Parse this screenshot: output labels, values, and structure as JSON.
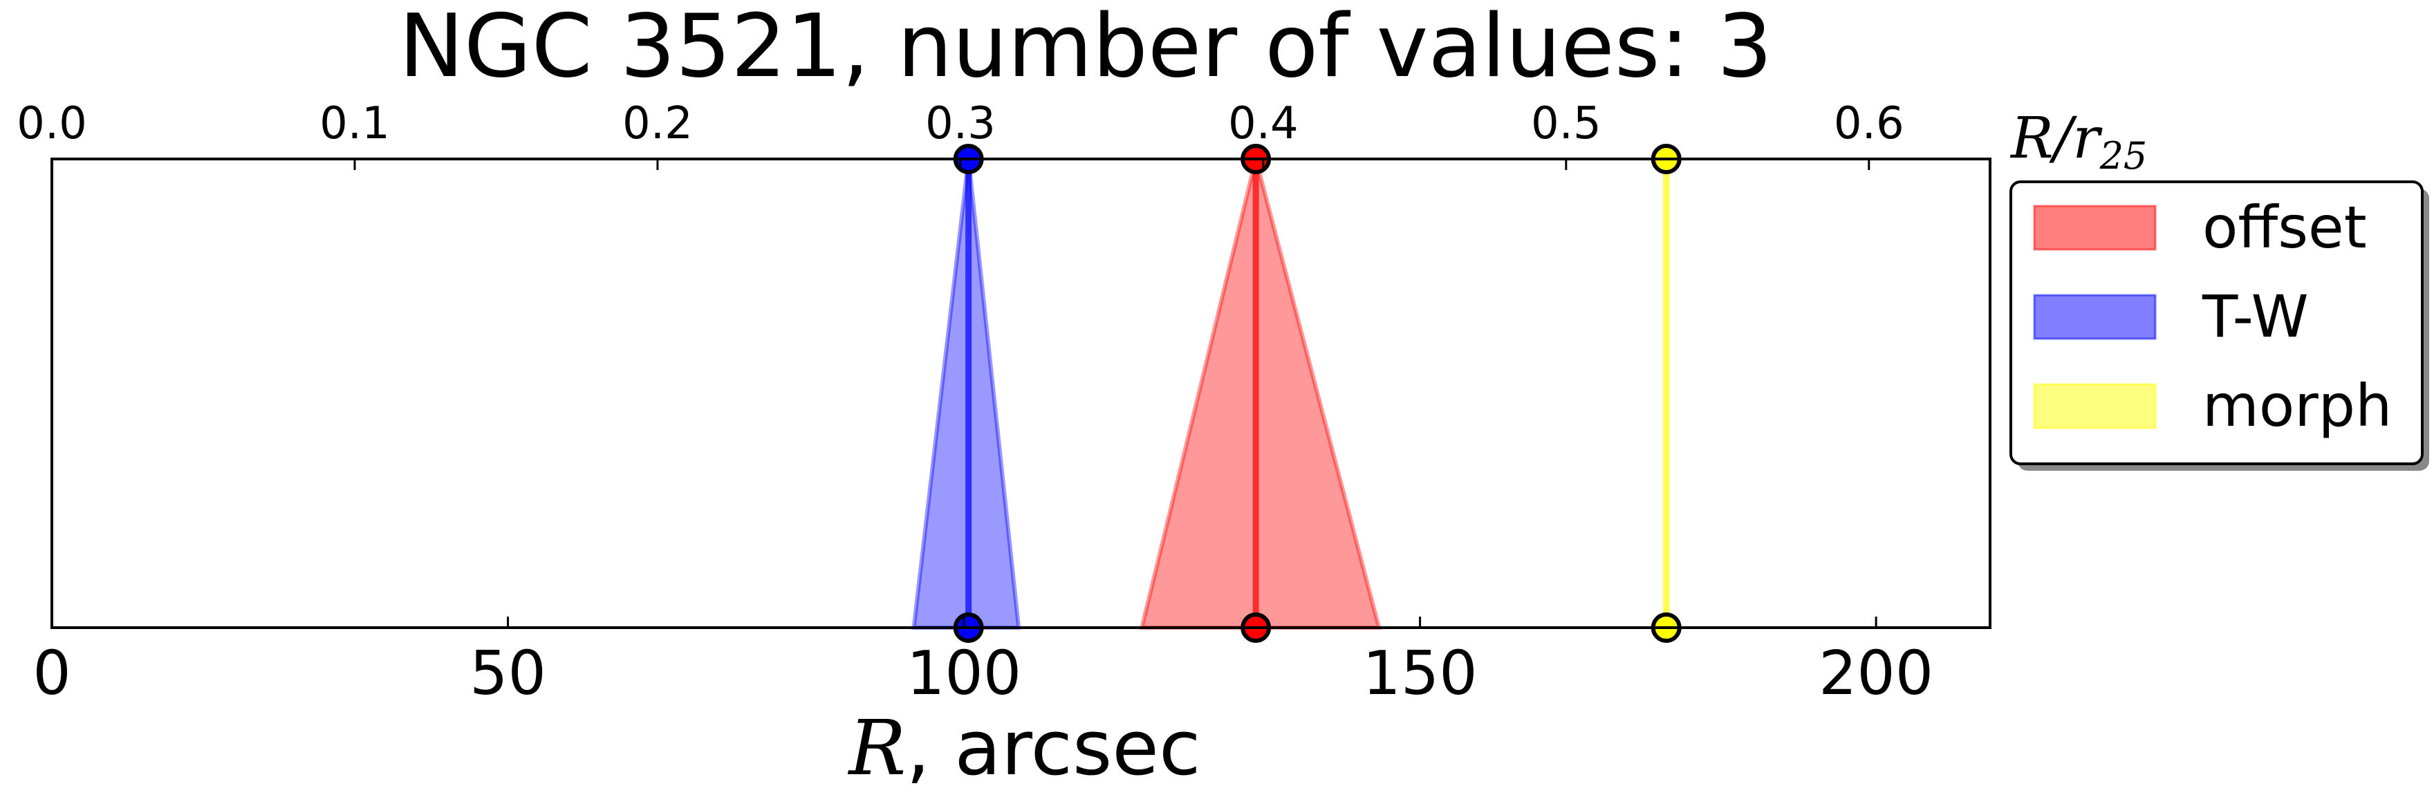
{
  "chart_data": {
    "type": "area",
    "title": "NGC 3521, number of values: 3",
    "xlabel_symbol": "R",
    "xlabel_rest": ", arcsec",
    "top_axis_label_main": "R/r",
    "top_axis_label_sub": "25",
    "xlim": [
      0,
      212.5
    ],
    "x_ticks": [
      0,
      50,
      100,
      150,
      200
    ],
    "x_tick_labels": [
      "0",
      "50",
      "100",
      "150",
      "200"
    ],
    "top_xlim": [
      0,
      0.64
    ],
    "top_ticks": [
      0.0,
      0.1,
      0.2,
      0.3,
      0.4,
      0.5,
      0.6
    ],
    "top_tick_labels": [
      "0.0",
      "0.1",
      "0.2",
      "0.3",
      "0.4",
      "0.5",
      "0.6"
    ],
    "grid": false,
    "legend_position": "right, outside plot",
    "series": [
      {
        "name": "offset",
        "center": 132,
        "low": 119.5,
        "high": 145.5,
        "color": "#ff0000"
      },
      {
        "name": "T-W",
        "center": 100.5,
        "low": 94.5,
        "high": 106,
        "color": "#0000ff"
      },
      {
        "name": "morph",
        "center": 177,
        "low": 177,
        "high": 177,
        "color": "#ffff00"
      }
    ]
  }
}
